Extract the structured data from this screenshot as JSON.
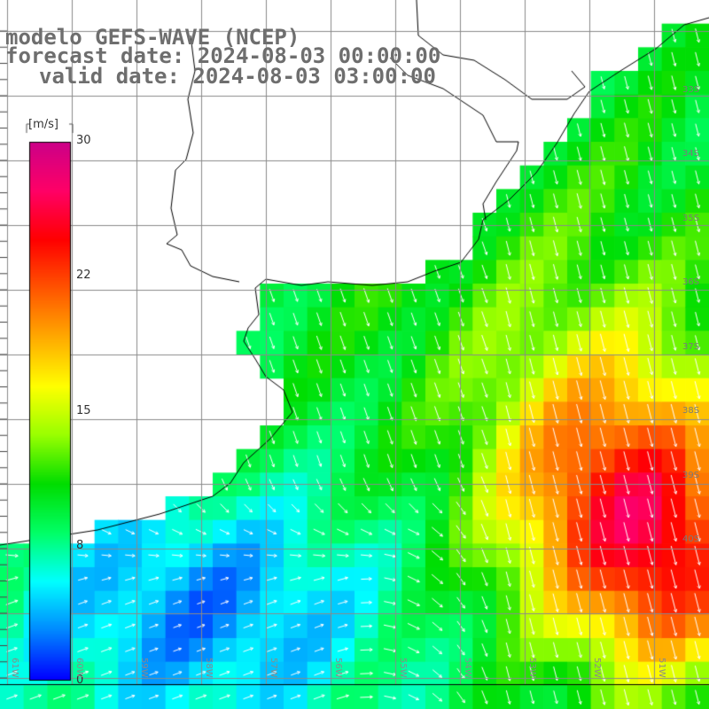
{
  "title": {
    "line1": "modelo GEFS-WAVE (NCEP)",
    "line2": "forecast date: 2024-08-03 00:00:00",
    "line3": "valid date: 2024-08-03 03:00:00"
  },
  "colorbar": {
    "unit": "[m/s]",
    "ticks": [
      {
        "label": "30",
        "value": 30
      },
      {
        "label": "22",
        "value": 22
      },
      {
        "label": "15",
        "value": 15
      },
      {
        "label": "8",
        "value": 8
      },
      {
        "label": "0",
        "value": 0
      }
    ],
    "min": 0,
    "max": 30,
    "colors": [
      "#0000ff",
      "#0088ff",
      "#00ffff",
      "#00ff66",
      "#00dd00",
      "#99ff00",
      "#ffff00",
      "#ffaa00",
      "#ff5500",
      "#ff0000",
      "#ff0066",
      "#cc0088"
    ]
  },
  "map": {
    "lat_labels": [
      "33S",
      "34S",
      "35S",
      "36S",
      "37S",
      "38S",
      "39S",
      "40S"
    ],
    "lon_labels": [
      "61W",
      "60W",
      "59W",
      "58W",
      "57W",
      "56W",
      "55W",
      "54W",
      "53W",
      "52W",
      "51W"
    ],
    "land_color": "#ffffff",
    "grid_color": "#8a8a8a",
    "coast_color": "#000000",
    "arrow_color": "#ffffff"
  }
}
